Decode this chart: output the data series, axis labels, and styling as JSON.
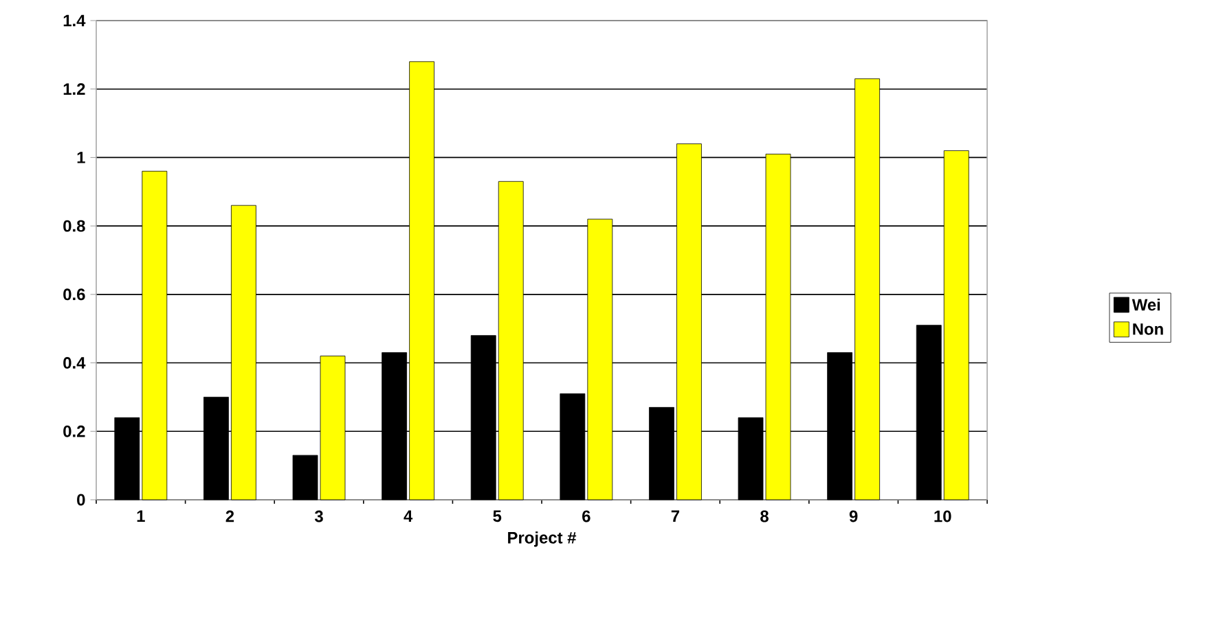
{
  "chart_data": {
    "type": "bar",
    "xlabel": "Project #",
    "categories": [
      "1",
      "2",
      "3",
      "4",
      "5",
      "6",
      "7",
      "8",
      "9",
      "10"
    ],
    "series": [
      {
        "name": "Wei",
        "color": "#000000",
        "values": [
          0.24,
          0.3,
          0.13,
          0.43,
          0.48,
          0.31,
          0.27,
          0.24,
          0.43,
          0.51
        ]
      },
      {
        "name": "Non",
        "color": "#ffff00",
        "values": [
          0.96,
          0.86,
          0.42,
          1.28,
          0.93,
          0.82,
          1.04,
          1.01,
          1.23,
          1.02
        ]
      }
    ],
    "ylim": [
      0,
      1.4
    ],
    "yticks": [
      0,
      0.2,
      0.4,
      0.6,
      0.8,
      1,
      1.2,
      1.4
    ],
    "grid": "y",
    "legend": "right"
  }
}
